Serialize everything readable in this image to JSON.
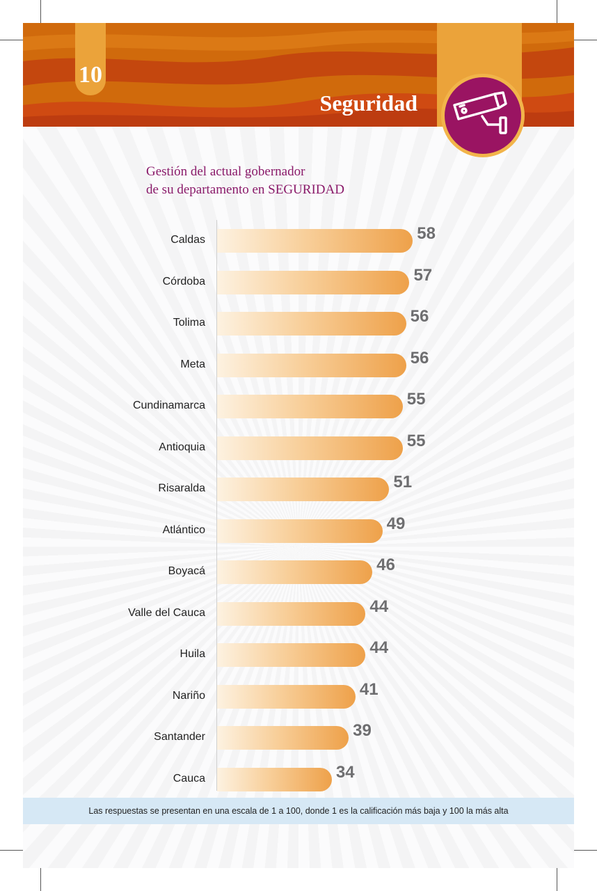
{
  "page_number": "10",
  "section": {
    "title": "Seguridad",
    "icon": "security-camera-icon",
    "banner_color": "#d4700c",
    "accent_color": "#9a1462"
  },
  "chart_data": {
    "type": "bar",
    "orientation": "horizontal",
    "title_line1": "Gestión del actual gobernador",
    "title_line2": "de su departamento en SEGURIDAD",
    "categories": [
      "Caldas",
      "Córdoba",
      "Tolima",
      "Meta",
      "Cundinamarca",
      "Antioquia",
      "Risaralda",
      "Atlántico",
      "Boyacá",
      "Valle del Cauca",
      "Huila",
      "Nariño",
      "Santander",
      "Cauca"
    ],
    "values": [
      58,
      57,
      56,
      56,
      55,
      55,
      51,
      49,
      46,
      44,
      44,
      41,
      39,
      34
    ],
    "xlim": [
      0,
      100
    ],
    "bar_color_start": "#fdf2e1",
    "bar_color_end": "#eea14a",
    "value_label_color": "#6e6e70"
  },
  "footnote": "Las respuestas se presentan en una escala de 1 a 100, donde 1 es la calificación más baja y 100 la más alta"
}
